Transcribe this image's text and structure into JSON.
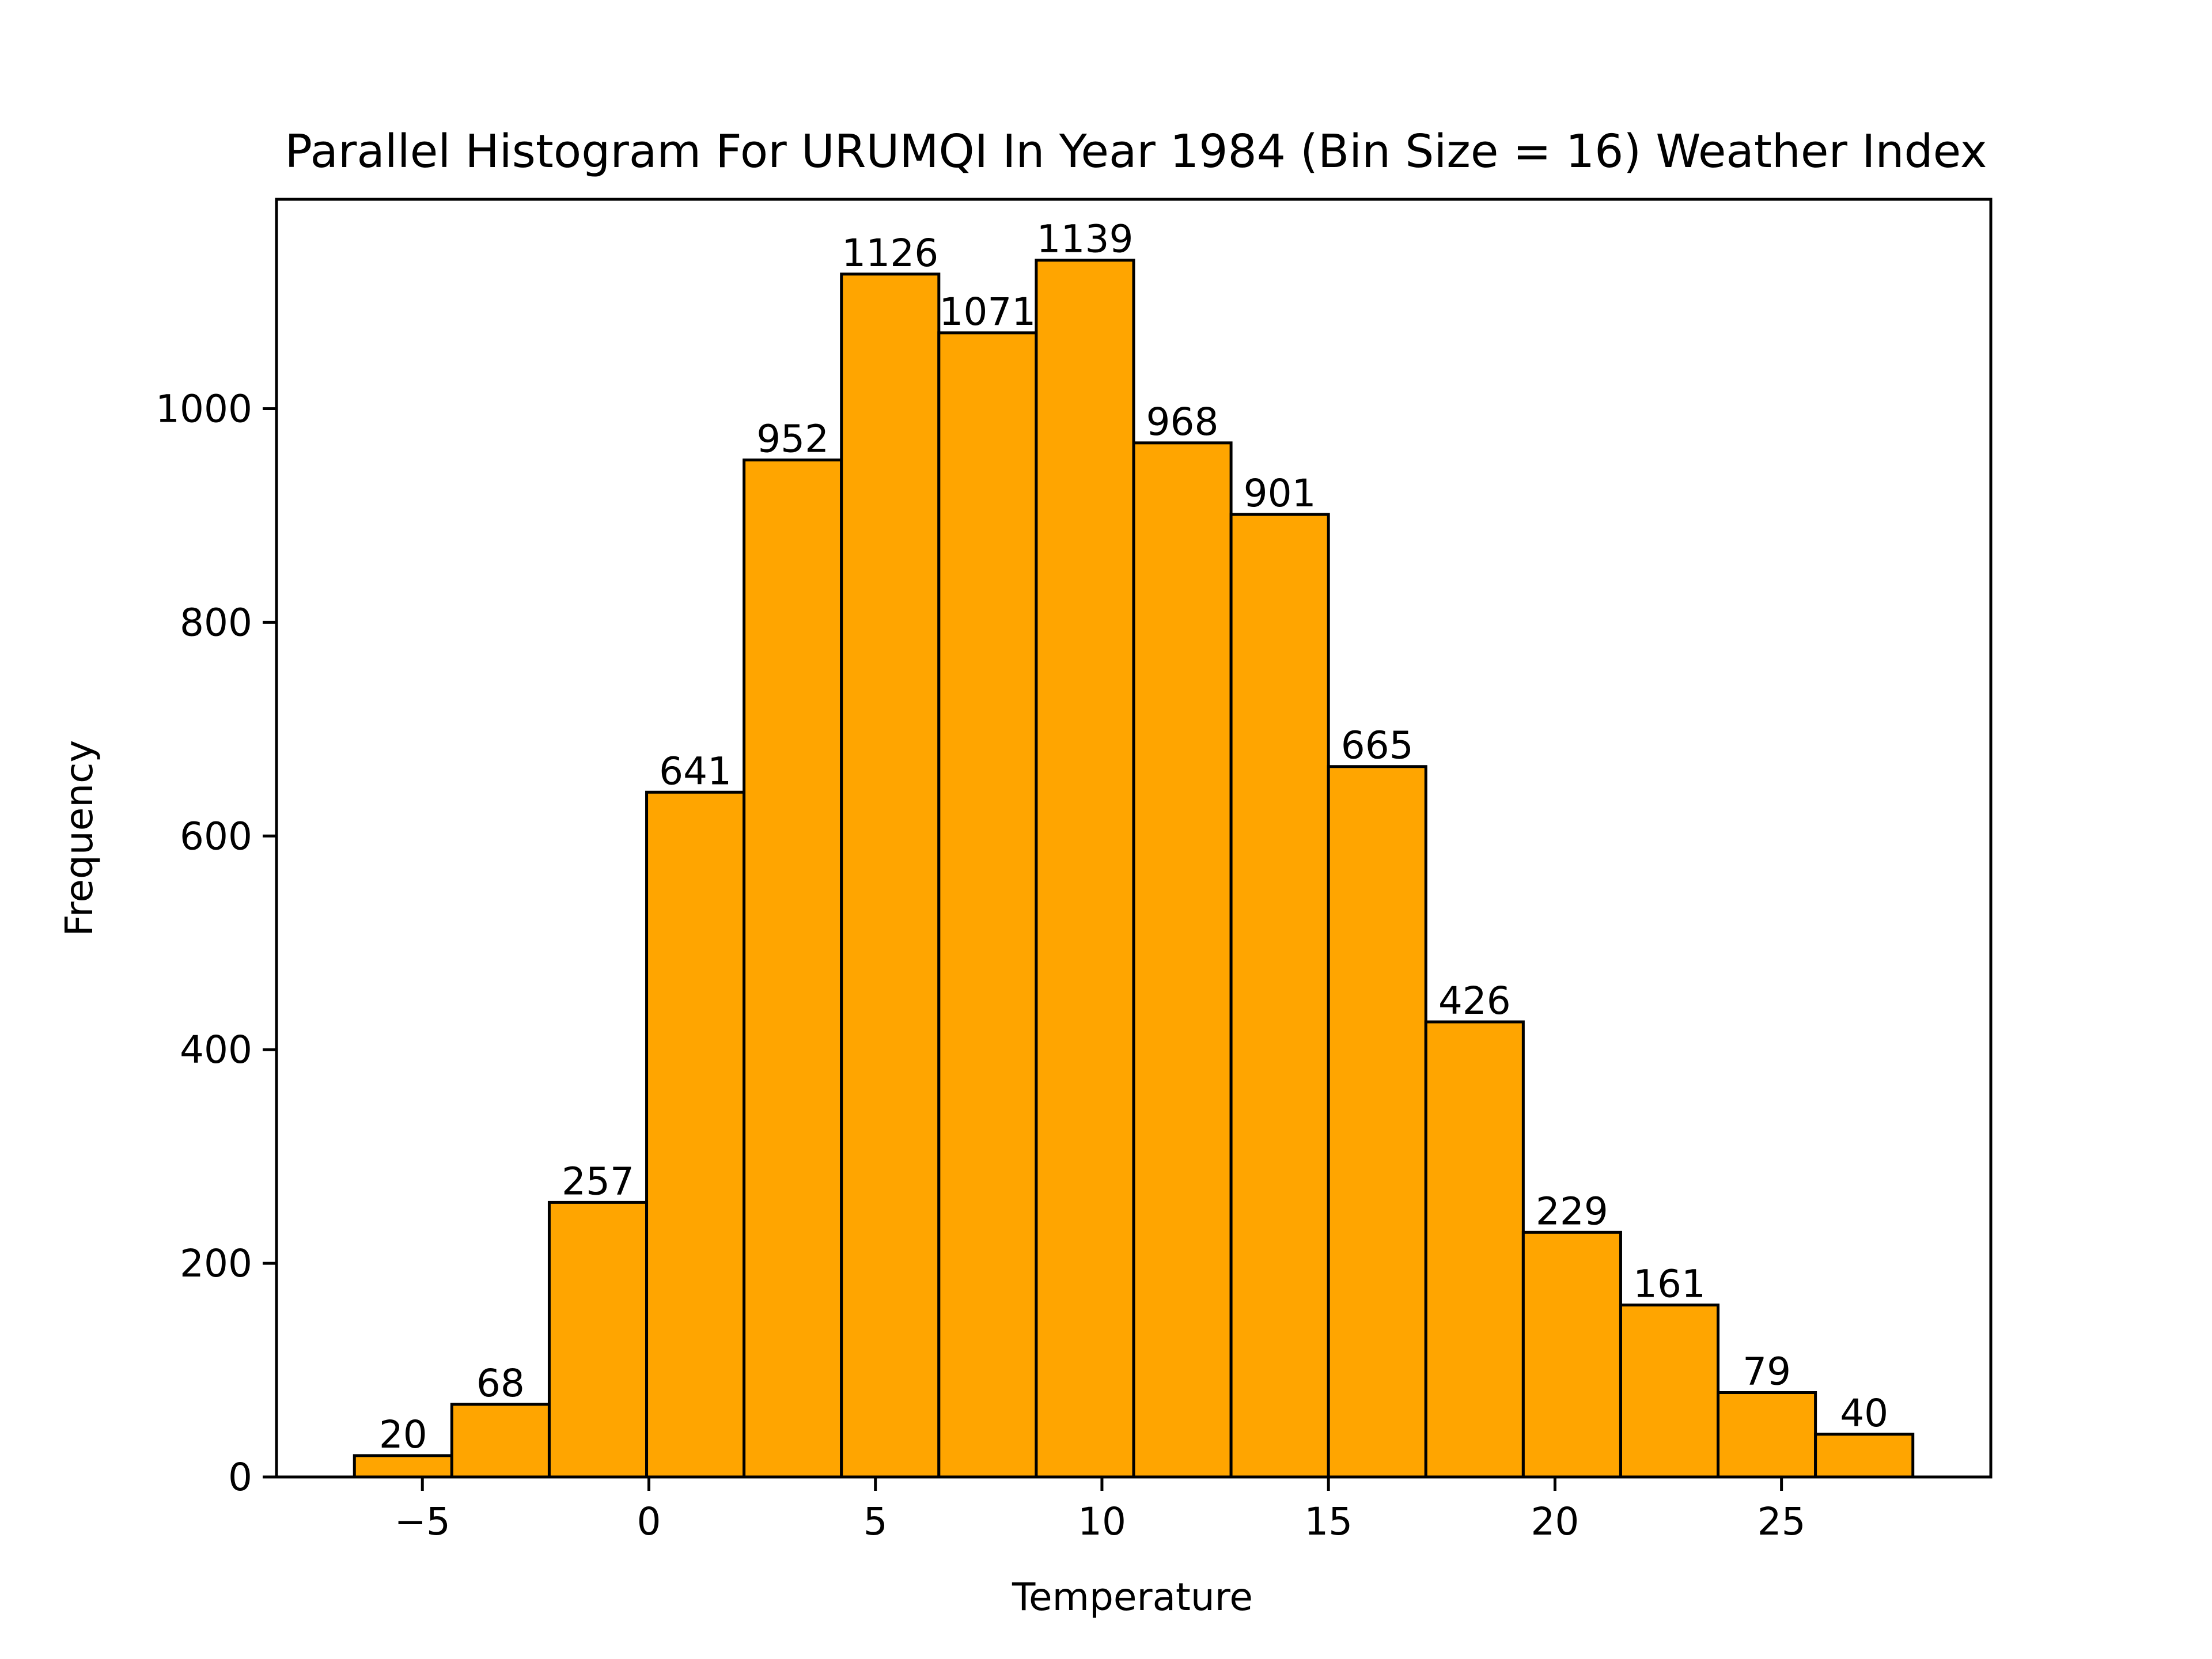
{
  "chart_data": {
    "type": "bar",
    "title": "Parallel Histogram For URUMQI In Year 1984 (Bin Size = 16) Weather Index",
    "xlabel": "Temperature",
    "ylabel": "Frequency",
    "bin_edges": [
      -6.5,
      -4.35,
      -2.2,
      -0.05,
      2.1,
      4.25,
      6.4,
      8.55,
      10.7,
      12.85,
      15.0,
      17.15,
      19.3,
      21.45,
      23.6,
      25.75,
      27.9
    ],
    "values": [
      20,
      68,
      257,
      641,
      952,
      1126,
      1071,
      1139,
      968,
      901,
      665,
      426,
      229,
      161,
      79,
      40
    ],
    "value_labels": [
      "20",
      "68",
      "257",
      "641",
      "952",
      "1126",
      "1071",
      "1139",
      "968",
      "901",
      "665",
      "426",
      "229",
      "161",
      "79",
      "40"
    ],
    "xlim": [
      -8.22,
      29.62
    ],
    "ylim": [
      0,
      1196
    ],
    "xticks": [
      -5,
      0,
      5,
      10,
      15,
      20,
      25
    ],
    "xtick_labels": [
      "−5",
      "0",
      "5",
      "10",
      "15",
      "20",
      "25"
    ],
    "yticks": [
      0,
      200,
      400,
      600,
      800,
      1000
    ],
    "ytick_labels": [
      "0",
      "200",
      "400",
      "600",
      "800",
      "1000"
    ],
    "bar_color": "#FFA500",
    "edge_color": "#000000",
    "grid": false,
    "legend": "none"
  }
}
